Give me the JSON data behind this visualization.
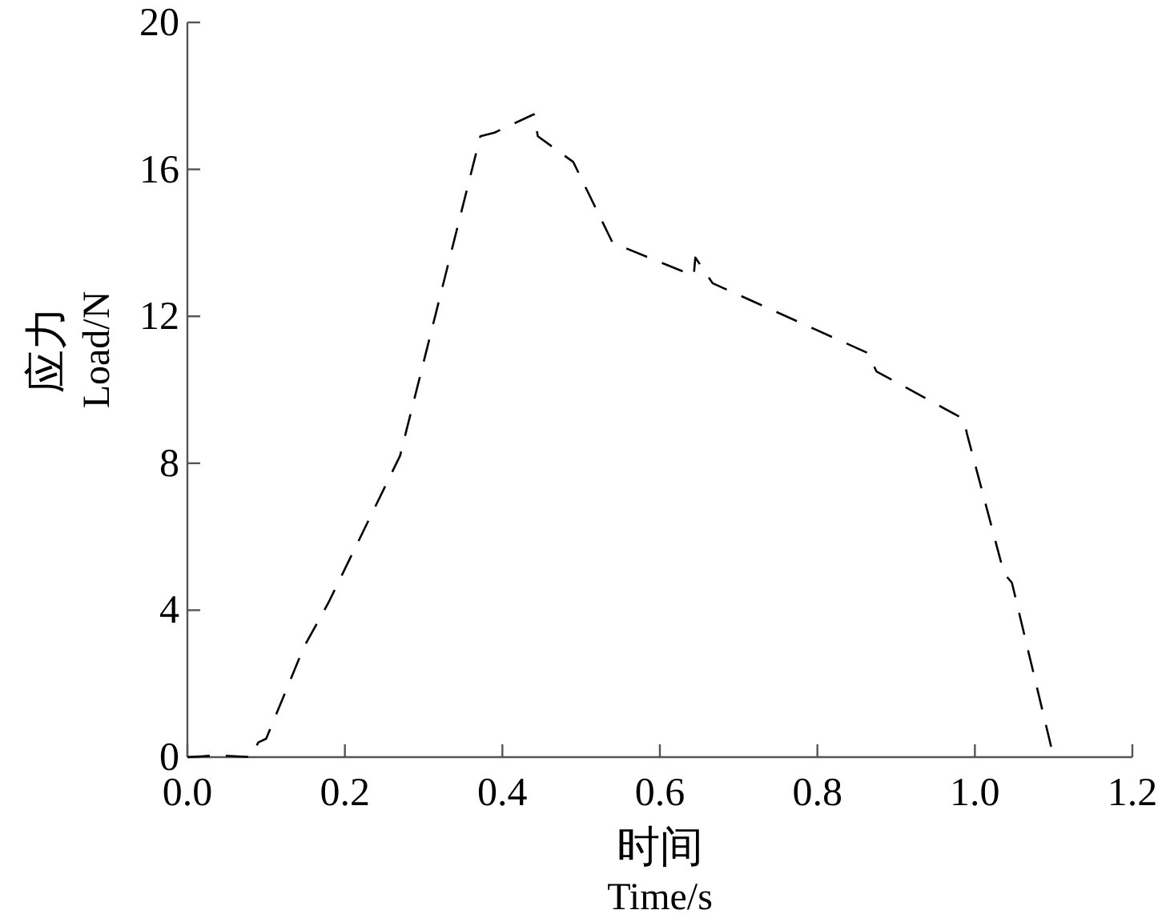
{
  "chart_data": {
    "type": "line",
    "xlabel": "时间\nTime/s",
    "ylabel": "应力\nLoad/N",
    "xlim": [
      0,
      1.2
    ],
    "xticks": [
      {
        "value": 0,
        "label": "0.0"
      },
      0.2,
      0.4,
      0.6,
      0.8,
      {
        "value": 1,
        "label": "1.0"
      },
      1.2
    ],
    "ylim": [
      0,
      20
    ],
    "yticks": [
      0,
      4,
      8,
      12,
      16,
      20
    ],
    "grid": false,
    "line_style": "dashed",
    "marker": "none",
    "series": [
      {
        "color": "#000000",
        "x": [
          0,
          0.04,
          0.081,
          0.09,
          0.1,
          0.148,
          0.179,
          0.27,
          0.372,
          0.39,
          0.44,
          0.445,
          0.49,
          0.54,
          0.643,
          0.645,
          0.667,
          0.864,
          0.875,
          0.986,
          0.99,
          1.037,
          1.047,
          1.1
        ],
        "values": [
          0,
          0.05,
          0,
          0.4,
          0.5,
          3.0,
          4.2,
          8.2,
          16.9,
          17.0,
          17.5,
          16.9,
          16.2,
          14.0,
          13.1,
          13.6,
          12.9,
          11.0,
          10.5,
          9.2,
          8.8,
          5.0,
          4.75,
          0
        ]
      }
    ]
  }
}
